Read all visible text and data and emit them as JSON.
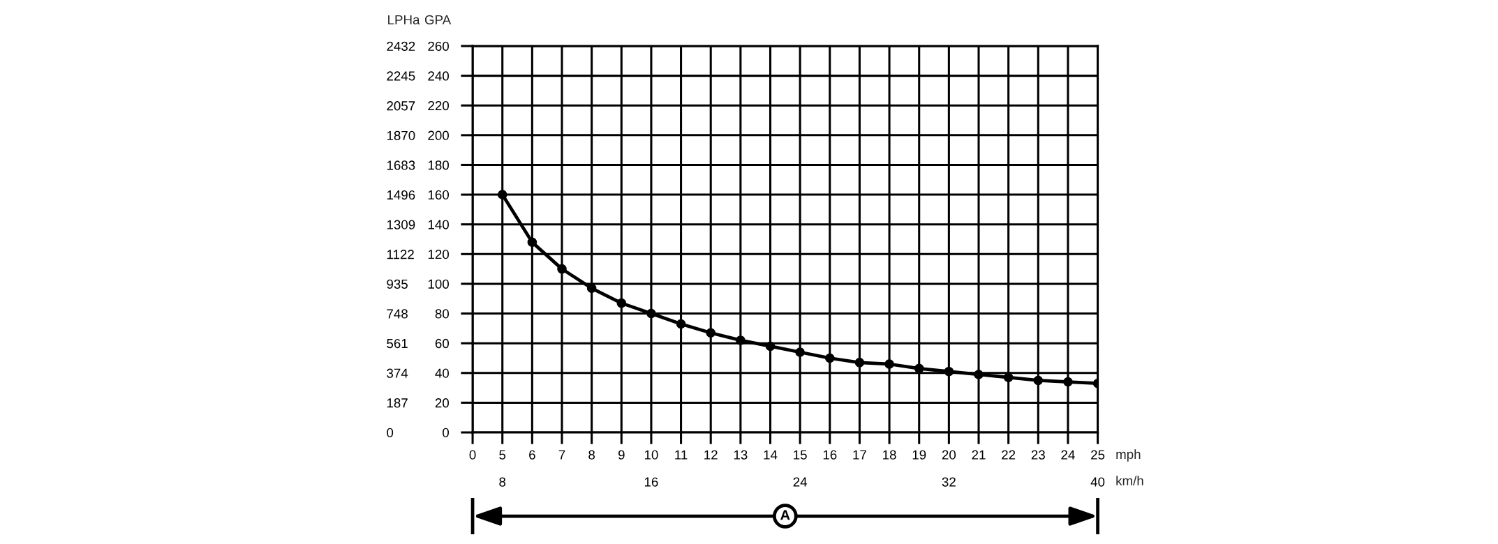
{
  "chart_data": {
    "type": "line",
    "categories": [
      "0",
      "5",
      "6",
      "7",
      "8",
      "9",
      "10",
      "11",
      "12",
      "13",
      "14",
      "15",
      "16",
      "17",
      "18",
      "19",
      "20",
      "21",
      "22",
      "23",
      "24",
      "25"
    ],
    "series": [
      {
        "color": "#000000",
        "values": [
          null,
          160,
          128,
          110,
          97,
          87,
          80,
          73,
          67,
          62,
          58,
          54,
          50,
          47,
          46,
          43,
          41,
          39,
          37,
          35,
          34,
          33
        ]
      }
    ],
    "xlabel": "mph",
    "ylabel": "GPA",
    "y2label": "LPHa",
    "x2label": "km/h",
    "ylim": [
      0,
      260
    ],
    "yticks": [
      0,
      20,
      40,
      60,
      80,
      100,
      120,
      140,
      160,
      180,
      200,
      220,
      240,
      260
    ],
    "y2lim": [
      0,
      2432
    ],
    "y2ticks": [
      0,
      187,
      374,
      561,
      748,
      935,
      1122,
      1309,
      1496,
      1683,
      1870,
      2057,
      2245,
      2432
    ],
    "x2lim": [
      6.4,
      40
    ],
    "x2ticks": [
      8,
      16,
      24,
      32,
      40
    ],
    "annotations": [
      "A"
    ],
    "grid": true,
    "marker": "circle",
    "line_style": "solid"
  }
}
